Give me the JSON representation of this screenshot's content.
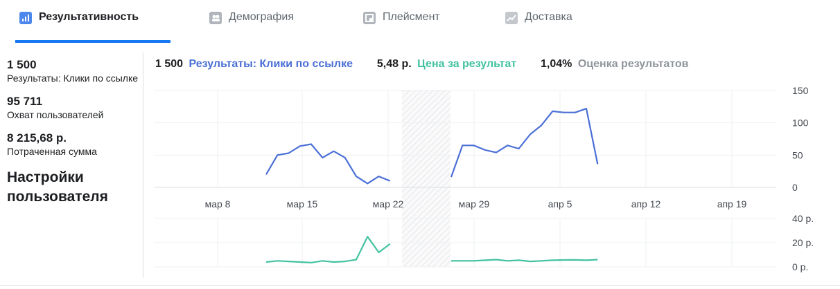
{
  "tabs": [
    {
      "label": "Результативность",
      "icon": "bar-chart-icon"
    },
    {
      "label": "Демография",
      "icon": "people-icon"
    },
    {
      "label": "Плейсмент",
      "icon": "placement-icon"
    },
    {
      "label": "Доставка",
      "icon": "line-chart-icon"
    }
  ],
  "sidebar": {
    "metrics": [
      {
        "value": "1 500",
        "label": "Результаты: Клики по ссылке"
      },
      {
        "value": "95 711",
        "label": "Охват пользователей"
      },
      {
        "value": "8 215,68 р.",
        "label": "Потраченная сумма"
      }
    ],
    "settings_label": "Настройки пользователя"
  },
  "summary": {
    "results_value": "1 500",
    "results_label": "Результаты: Клики по ссылке",
    "cpr_value": "5,48 р.",
    "cpr_label": "Цена за результат",
    "score_value": "1,04%",
    "score_label": "Оценка результатов"
  },
  "colors": {
    "blue": "#4a6fd6",
    "green": "#42c2a0",
    "gray": "#90949c",
    "tab_accent": "#1877f2"
  },
  "chart_data": [
    {
      "type": "line",
      "title": "Результаты: Клики по ссылке",
      "x_ticks": [
        "мар 8",
        "мар 15",
        "мар 22",
        "мар 29",
        "апр 5",
        "апр 12",
        "апр 19"
      ],
      "y_ticks": [
        "150",
        "100",
        "50",
        "0"
      ],
      "ylim": [
        0,
        150
      ],
      "grid": true,
      "gap_period": [
        "мар 23",
        "мар 26"
      ],
      "series": [
        {
          "segments": [
            [
              20,
              50,
              53,
              64,
              67,
              46,
              56,
              46,
              17,
              6,
              17,
              10
            ],
            [
              16,
              65,
              65,
              58,
              54,
              65,
              60,
              82,
              96,
              118,
              116,
              116,
              122,
              36
            ]
          ]
        }
      ]
    },
    {
      "type": "line",
      "title": "Цена за результат",
      "y_ticks": [
        "40 р.",
        "20 р.",
        "0 р."
      ],
      "ylim": [
        0,
        40
      ],
      "grid": true,
      "series": [
        {
          "segments": [
            [
              4,
              5,
              4.5,
              4,
              3.5,
              5,
              4,
              4.5,
              6,
              25,
              12,
              19
            ],
            [
              5,
              5,
              5,
              5.5,
              6,
              5,
              5.5,
              4.5,
              5,
              5.5,
              5.7,
              5.8,
              5.5,
              6
            ]
          ]
        }
      ]
    }
  ]
}
